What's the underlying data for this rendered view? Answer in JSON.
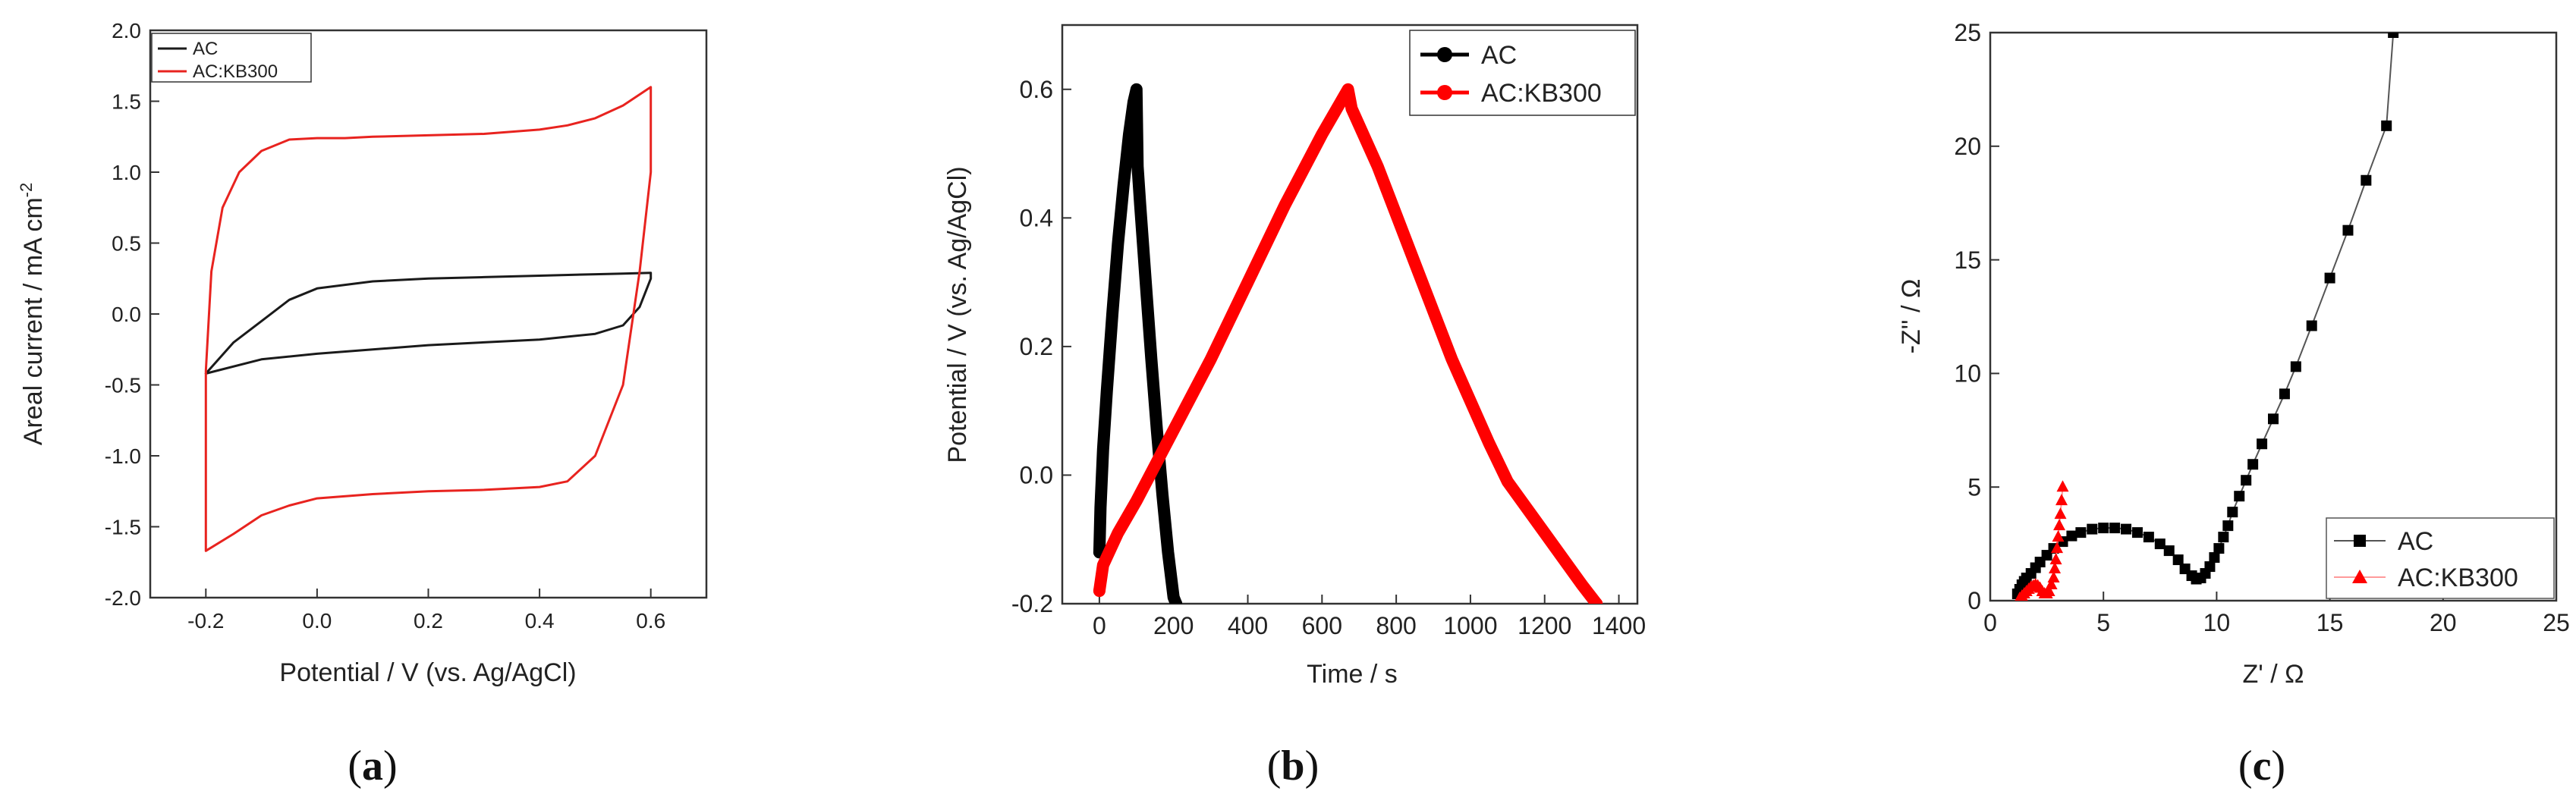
{
  "chart_data": [
    {
      "type": "line",
      "panel_label": "a",
      "title": "",
      "xlabel": "Potential / V (vs. Ag/AgCl)",
      "ylabel": "Areal current / mA cm",
      "ylabel_superscript": "-2",
      "xlim": [
        -0.3,
        0.7
      ],
      "ylim": [
        -2.0,
        2.0
      ],
      "xticks": [
        -0.2,
        0.0,
        0.2,
        0.4,
        0.6
      ],
      "xtick_labels": [
        "-0.2",
        "0.0",
        "0.2",
        "0.4",
        "0.6"
      ],
      "yticks": [
        -2.0,
        -1.5,
        -1.0,
        -0.5,
        0.0,
        0.5,
        1.0,
        1.5,
        2.0
      ],
      "ytick_labels": [
        "-2.0",
        "-1.5",
        "-1.0",
        "-0.5",
        "0.0",
        "0.5",
        "1.0",
        "1.5",
        "2.0"
      ],
      "legend_position": "top-left",
      "series": [
        {
          "name": "AC",
          "color": "#1a1a1a",
          "marker": "none",
          "x": [
            -0.2,
            -0.15,
            -0.1,
            -0.05,
            0.0,
            0.1,
            0.2,
            0.3,
            0.4,
            0.5,
            0.55,
            0.6,
            0.6,
            0.58,
            0.55,
            0.5,
            0.4,
            0.3,
            0.2,
            0.1,
            0.0,
            -0.1,
            -0.2
          ],
          "y": [
            -0.42,
            -0.2,
            -0.05,
            0.1,
            0.18,
            0.23,
            0.25,
            0.26,
            0.27,
            0.28,
            0.285,
            0.29,
            0.25,
            0.05,
            -0.08,
            -0.14,
            -0.18,
            -0.2,
            -0.22,
            -0.25,
            -0.28,
            -0.32,
            -0.42
          ]
        },
        {
          "name": "AC:KB300",
          "color": "#e8231f",
          "marker": "none",
          "x": [
            -0.2,
            -0.2,
            -0.19,
            -0.17,
            -0.14,
            -0.1,
            -0.05,
            0.0,
            0.05,
            0.1,
            0.2,
            0.3,
            0.4,
            0.45,
            0.5,
            0.55,
            0.6,
            0.6,
            0.58,
            0.55,
            0.5,
            0.45,
            0.4,
            0.3,
            0.2,
            0.1,
            0.0,
            -0.05,
            -0.1,
            -0.15,
            -0.2
          ],
          "y": [
            -1.67,
            -0.4,
            0.3,
            0.75,
            1.0,
            1.15,
            1.23,
            1.24,
            1.24,
            1.25,
            1.26,
            1.27,
            1.3,
            1.33,
            1.38,
            1.47,
            1.6,
            1.0,
            0.3,
            -0.5,
            -1.0,
            -1.18,
            -1.22,
            -1.24,
            -1.25,
            -1.27,
            -1.3,
            -1.35,
            -1.42,
            -1.55,
            -1.67
          ]
        }
      ]
    },
    {
      "type": "line",
      "panel_label": "b",
      "title": "",
      "xlabel": "Time / s",
      "ylabel": "Potential / V (vs. Ag/AgCl)",
      "xlim": [
        -100,
        1450
      ],
      "ylim": [
        -0.2,
        0.7
      ],
      "xticks": [
        0,
        200,
        400,
        600,
        800,
        1000,
        1200,
        1400
      ],
      "xtick_labels": [
        "0",
        "200",
        "400",
        "600",
        "800",
        "1000",
        "1200",
        "1400"
      ],
      "yticks": [
        -0.2,
        0.0,
        0.2,
        0.4,
        0.6
      ],
      "ytick_labels": [
        "-0.2",
        "0.0",
        "0.2",
        "0.4",
        "0.6"
      ],
      "legend_position": "top-right",
      "series": [
        {
          "name": "AC",
          "color": "#000000",
          "marker": "circle",
          "x": [
            0,
            3,
            10,
            20,
            35,
            50,
            65,
            80,
            92,
            100,
            103,
            110,
            125,
            140,
            155,
            170,
            185,
            200,
            207
          ],
          "y": [
            -0.12,
            -0.05,
            0.04,
            0.13,
            0.25,
            0.36,
            0.45,
            0.53,
            0.58,
            0.6,
            0.48,
            0.42,
            0.3,
            0.18,
            0.07,
            -0.03,
            -0.12,
            -0.19,
            -0.2
          ]
        },
        {
          "name": "AC:KB300",
          "color": "#ff0000",
          "marker": "circle",
          "x": [
            0,
            10,
            50,
            100,
            200,
            300,
            400,
            500,
            600,
            650,
            670,
            680,
            750,
            850,
            950,
            1050,
            1100,
            1200,
            1300,
            1340
          ],
          "y": [
            -0.18,
            -0.14,
            -0.09,
            -0.04,
            0.07,
            0.18,
            0.3,
            0.42,
            0.53,
            0.58,
            0.6,
            0.57,
            0.48,
            0.33,
            0.18,
            0.05,
            -0.01,
            -0.09,
            -0.17,
            -0.2
          ]
        }
      ]
    },
    {
      "type": "scatter",
      "panel_label": "c",
      "title": "",
      "xlabel": "Z' / Ω",
      "ylabel": "-Z'' / Ω",
      "xlim": [
        0,
        25
      ],
      "ylim": [
        0,
        25
      ],
      "xticks": [
        0,
        5,
        10,
        15,
        20,
        25
      ],
      "xtick_labels": [
        "0",
        "5",
        "10",
        "15",
        "20",
        "25"
      ],
      "yticks": [
        0,
        5,
        10,
        15,
        20,
        25
      ],
      "ytick_labels": [
        "0",
        "5",
        "10",
        "15",
        "20",
        "25"
      ],
      "legend_position": "bottom-right",
      "series": [
        {
          "name": "AC",
          "color": "#000000",
          "marker": "square",
          "x": [
            1.2,
            1.3,
            1.4,
            1.5,
            1.6,
            1.8,
            2.0,
            2.2,
            2.5,
            2.8,
            3.2,
            3.6,
            4.0,
            4.5,
            5.0,
            5.5,
            6.0,
            6.5,
            7.0,
            7.5,
            7.9,
            8.3,
            8.6,
            8.9,
            9.1,
            9.3,
            9.5,
            9.7,
            9.9,
            10.1,
            10.3,
            10.5,
            10.7,
            11.0,
            11.3,
            11.6,
            12.0,
            12.5,
            13.0,
            13.5,
            14.2,
            15.0,
            15.8,
            16.6,
            17.5,
            17.8
          ],
          "y": [
            0.3,
            0.5,
            0.7,
            0.85,
            1.0,
            1.2,
            1.45,
            1.7,
            2.0,
            2.3,
            2.6,
            2.85,
            3.0,
            3.15,
            3.2,
            3.2,
            3.15,
            3.0,
            2.8,
            2.5,
            2.2,
            1.8,
            1.4,
            1.1,
            0.95,
            1.0,
            1.2,
            1.5,
            1.9,
            2.3,
            2.8,
            3.3,
            3.9,
            4.6,
            5.3,
            6.0,
            6.9,
            8.0,
            9.1,
            10.3,
            12.1,
            14.2,
            16.3,
            18.5,
            20.9,
            25.0
          ]
        },
        {
          "name": "AC:KB300",
          "color": "#ff0000",
          "marker": "triangle",
          "x": [
            1.3,
            1.4,
            1.5,
            1.6,
            1.7,
            1.8,
            1.9,
            2.0,
            2.1,
            2.2,
            2.3,
            2.4,
            2.5,
            2.6,
            2.7,
            2.8,
            2.85,
            2.9,
            2.95,
            3.0,
            3.05,
            3.1,
            3.15,
            3.2
          ],
          "y": [
            0.1,
            0.2,
            0.3,
            0.4,
            0.5,
            0.6,
            0.65,
            0.7,
            0.65,
            0.55,
            0.4,
            0.3,
            0.3,
            0.4,
            0.7,
            1.0,
            1.4,
            1.8,
            2.3,
            2.8,
            3.3,
            3.8,
            4.4,
            5.0
          ]
        }
      ]
    }
  ]
}
